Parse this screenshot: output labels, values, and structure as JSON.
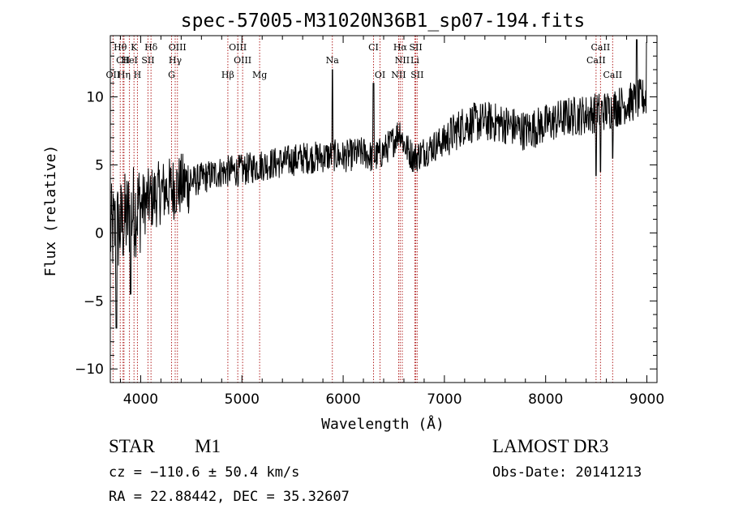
{
  "chart_data": {
    "type": "line",
    "title": "spec-57005-M31020N36B1_sp07-194.fits",
    "xlabel": "Wavelength (Å)",
    "ylabel": "Flux (relative)",
    "xlim": [
      3700,
      9100
    ],
    "ylim": [
      -11,
      14.5
    ],
    "xticks": [
      4000,
      5000,
      6000,
      7000,
      8000,
      9000
    ],
    "yticks": [
      -10,
      -5,
      0,
      5,
      10
    ],
    "line_color": "#000000",
    "marker_color": "#b22222",
    "spectral_lines": [
      {
        "label": "Hθ",
        "wavelength": 3798,
        "row": 0
      },
      {
        "label": "K",
        "wavelength": 3934,
        "row": 0
      },
      {
        "label": "Hδ",
        "wavelength": 4102,
        "row": 0
      },
      {
        "label": "OIII",
        "wavelength": 4363,
        "row": 0
      },
      {
        "label": "OIII",
        "wavelength": 4959,
        "row": 0
      },
      {
        "label": "CI",
        "wavelength": 6300,
        "row": 0
      },
      {
        "label": "Hα",
        "wavelength": 6563,
        "row": 0
      },
      {
        "label": "SII",
        "wavelength": 6717,
        "row": 0
      },
      {
        "label": "CaII",
        "wavelength": 8542,
        "row": 0
      },
      {
        "label": "CII",
        "wavelength": 3826,
        "row": 1
      },
      {
        "label": "HeI",
        "wavelength": 3889,
        "row": 1
      },
      {
        "label": "SII",
        "wavelength": 4072,
        "row": 1
      },
      {
        "label": "Hγ",
        "wavelength": 4341,
        "row": 1
      },
      {
        "label": "OIII",
        "wavelength": 5007,
        "row": 1
      },
      {
        "label": "Na",
        "wavelength": 5893,
        "row": 1
      },
      {
        "label": "NII",
        "wavelength": 6584,
        "row": 1
      },
      {
        "label": "Li",
        "wavelength": 6708,
        "row": 1
      },
      {
        "label": "CaII",
        "wavelength": 8498,
        "row": 1
      },
      {
        "label": "OII",
        "wavelength": 3727,
        "row": 2
      },
      {
        "label": "Hη",
        "wavelength": 3835,
        "row": 2
      },
      {
        "label": "H",
        "wavelength": 3968,
        "row": 2
      },
      {
        "label": "G",
        "wavelength": 4305,
        "row": 2
      },
      {
        "label": "Hβ",
        "wavelength": 4861,
        "row": 2
      },
      {
        "label": "Mg",
        "wavelength": 5175,
        "row": 2
      },
      {
        "label": "OI",
        "wavelength": 6364,
        "row": 2
      },
      {
        "label": "NII",
        "wavelength": 6548,
        "row": 2
      },
      {
        "label": "SII",
        "wavelength": 6731,
        "row": 2
      },
      {
        "label": "CaII",
        "wavelength": 8662,
        "row": 2
      }
    ],
    "continuum_knots": [
      [
        3700,
        0.0
      ],
      [
        3800,
        0.5
      ],
      [
        3900,
        1.5
      ],
      [
        4000,
        2.0
      ],
      [
        4100,
        2.5
      ],
      [
        4200,
        3.0
      ],
      [
        4400,
        3.5
      ],
      [
        4600,
        4.0
      ],
      [
        4800,
        4.5
      ],
      [
        5000,
        4.6
      ],
      [
        5200,
        5.0
      ],
      [
        5400,
        5.2
      ],
      [
        5600,
        5.5
      ],
      [
        5800,
        5.6
      ],
      [
        5900,
        5.7
      ],
      [
        6000,
        5.6
      ],
      [
        6200,
        5.9
      ],
      [
        6300,
        5.5
      ],
      [
        6400,
        6.0
      ],
      [
        6500,
        6.8
      ],
      [
        6560,
        7.6
      ],
      [
        6600,
        6.5
      ],
      [
        6700,
        5.5
      ],
      [
        6800,
        6.0
      ],
      [
        7000,
        6.8
      ],
      [
        7200,
        8.0
      ],
      [
        7400,
        8.2
      ],
      [
        7600,
        8.0
      ],
      [
        7800,
        7.5
      ],
      [
        8000,
        8.0
      ],
      [
        8200,
        8.5
      ],
      [
        8400,
        8.7
      ],
      [
        8600,
        9.0
      ],
      [
        8800,
        9.5
      ],
      [
        9000,
        10.0
      ],
      [
        9100,
        10.2
      ]
    ],
    "features": [
      {
        "wavelength": 5893,
        "value": 12.0
      },
      {
        "wavelength": 6300,
        "value": 11.0
      },
      {
        "wavelength": 8498,
        "value": 4.2
      },
      {
        "wavelength": 8542,
        "value": 4.5
      },
      {
        "wavelength": 8662,
        "value": 5.5
      },
      {
        "wavelength": 8900,
        "value": 14.2
      },
      {
        "wavelength": 9000,
        "value": 14.0
      },
      {
        "wavelength": 3760,
        "value": -7.0
      },
      {
        "wavelength": 3900,
        "value": -4.5
      }
    ]
  },
  "info": {
    "object_type": "STAR",
    "subclass": "M1",
    "survey": "LAMOST DR3",
    "cz": "cz = −110.6 ± 50.4 km/s",
    "obs_date": "Obs-Date: 20141213",
    "coords": "RA =  22.88442, DEC =  35.32607"
  }
}
